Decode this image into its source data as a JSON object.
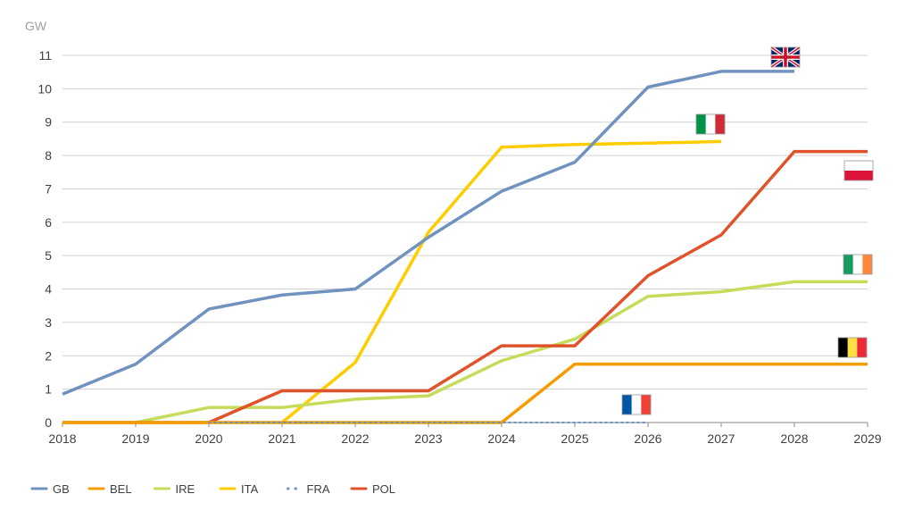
{
  "chart_data": {
    "type": "line",
    "ylabel": "GW",
    "x": [
      2018,
      2019,
      2020,
      2021,
      2022,
      2023,
      2024,
      2025,
      2026,
      2027,
      2028,
      2029
    ],
    "xlim": [
      2018,
      2029
    ],
    "ylim": [
      0,
      11
    ],
    "yticks": [
      0,
      1,
      2,
      3,
      4,
      5,
      6,
      7,
      8,
      9,
      10,
      11
    ],
    "grid": true,
    "legend_position": "bottom-left",
    "series": [
      {
        "name": "GB",
        "color": "#7092be",
        "dashed": false,
        "flag": "gb",
        "x": [
          2018,
          2019,
          2020,
          2021,
          2022,
          2023,
          2024,
          2025,
          2026,
          2027,
          2028
        ],
        "values": [
          0.85,
          1.75,
          3.4,
          3.82,
          4.0,
          5.55,
          6.93,
          7.8,
          10.05,
          10.52,
          10.52
        ]
      },
      {
        "name": "BEL",
        "color": "#f59c00",
        "dashed": false,
        "flag": "be",
        "x": [
          2018,
          2019,
          2020,
          2021,
          2022,
          2023,
          2024,
          2025,
          2026,
          2027,
          2028,
          2029
        ],
        "values": [
          0,
          0,
          0,
          0,
          0,
          0,
          0,
          1.75,
          1.75,
          1.75,
          1.75,
          1.75
        ]
      },
      {
        "name": "IRE",
        "color": "#c5dc5b",
        "dashed": false,
        "flag": "ie",
        "x": [
          2019,
          2020,
          2021,
          2022,
          2023,
          2024,
          2025,
          2026,
          2027,
          2028,
          2029
        ],
        "values": [
          0,
          0.45,
          0.45,
          0.7,
          0.8,
          1.85,
          2.5,
          3.78,
          3.92,
          4.22,
          4.22
        ]
      },
      {
        "name": "ITA",
        "color": "#ffcc00",
        "dashed": false,
        "flag": "it",
        "x": [
          2021,
          2022,
          2023,
          2024,
          2025,
          2026,
          2027
        ],
        "values": [
          0,
          1.8,
          5.7,
          8.25,
          8.33,
          8.37,
          8.42
        ]
      },
      {
        "name": "FRA",
        "color": "#7092be",
        "dashed": true,
        "flag": "fr",
        "x": [
          2020,
          2021,
          2022,
          2023,
          2024,
          2025,
          2026
        ],
        "values": [
          0,
          0,
          0,
          0,
          0,
          0,
          0
        ]
      },
      {
        "name": "POL",
        "color": "#e0522a",
        "dashed": false,
        "flag": "pl",
        "x": [
          2018,
          2019,
          2020,
          2021,
          2022,
          2023,
          2024,
          2025,
          2026,
          2027,
          2028,
          2029
        ],
        "values": [
          0,
          0,
          0,
          0.95,
          0.95,
          0.95,
          2.3,
          2.3,
          4.4,
          5.62,
          8.12,
          8.12
        ]
      }
    ]
  }
}
